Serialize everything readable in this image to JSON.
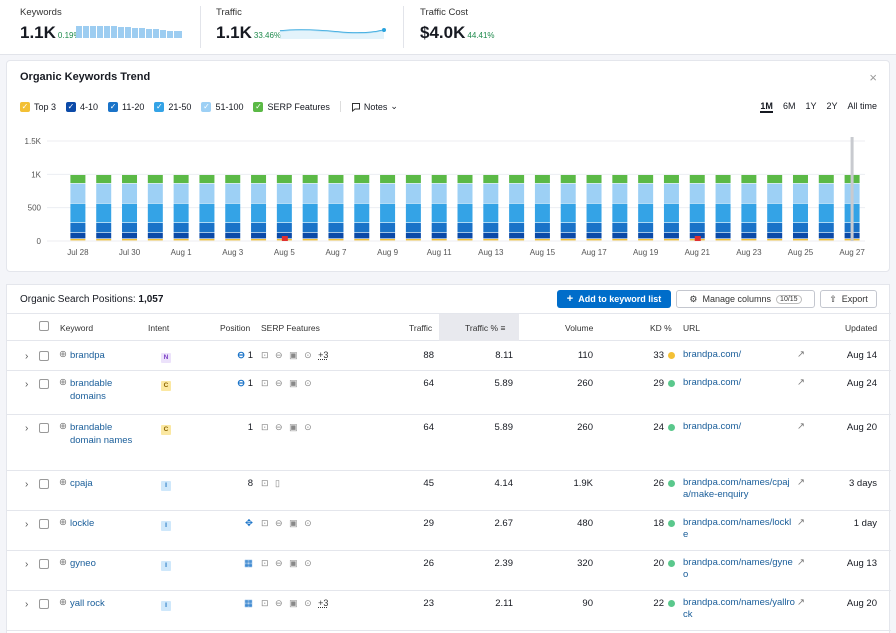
{
  "metrics": {
    "keywords": {
      "label": "Keywords",
      "value": "1.1K",
      "pct": "0.19%"
    },
    "traffic": {
      "label": "Traffic",
      "value": "1.1K",
      "pct": "33.46%"
    },
    "traffic_cost": {
      "label": "Traffic Cost",
      "value": "$4.0K",
      "pct": "44.41%"
    }
  },
  "trend": {
    "title": "Organic Keywords Trend",
    "legend": [
      {
        "label": "Top 3",
        "color": "#f3c035"
      },
      {
        "label": "4-10",
        "color": "#0b4aa8"
      },
      {
        "label": "11-20",
        "color": "#1a73c8"
      },
      {
        "label": "21-50",
        "color": "#34a3e6"
      },
      {
        "label": "51-100",
        "color": "#9dd0f5"
      },
      {
        "label": "SERP Features",
        "color": "#5bb946"
      }
    ],
    "notes_label": "Notes",
    "ranges": [
      "1M",
      "6M",
      "1Y",
      "2Y",
      "All time"
    ],
    "active_range": "1M"
  },
  "chart_data": {
    "type": "bar",
    "stacked": true,
    "categories": [
      "Jul 28",
      "Jul 29",
      "Jul 30",
      "Jul 31",
      "Aug 1",
      "Aug 2",
      "Aug 3",
      "Aug 4",
      "Aug 5",
      "Aug 6",
      "Aug 7",
      "Aug 8",
      "Aug 9",
      "Aug 10",
      "Aug 11",
      "Aug 12",
      "Aug 13",
      "Aug 14",
      "Aug 15",
      "Aug 16",
      "Aug 17",
      "Aug 18",
      "Aug 19",
      "Aug 20",
      "Aug 21",
      "Aug 22",
      "Aug 23",
      "Aug 24",
      "Aug 25",
      "Aug 26",
      "Aug 27"
    ],
    "x_tick_labels": [
      "Jul 28",
      "Jul 30",
      "Aug 1",
      "Aug 3",
      "Aug 5",
      "Aug 7",
      "Aug 9",
      "Aug 11",
      "Aug 13",
      "Aug 15",
      "Aug 17",
      "Aug 19",
      "Aug 21",
      "Aug 23",
      "Aug 25",
      "Aug 27"
    ],
    "y_tick_labels": [
      "1.5K",
      "1K",
      "500",
      "0"
    ],
    "ylim": [
      0,
      1500
    ],
    "series": [
      {
        "name": "Top 3",
        "color": "#f3c035",
        "values": [
          30,
          30,
          30,
          30,
          30,
          30,
          30,
          30,
          30,
          30,
          30,
          30,
          30,
          30,
          30,
          30,
          30,
          30,
          30,
          30,
          30,
          30,
          30,
          30,
          30,
          30,
          30,
          30,
          30,
          30,
          30
        ]
      },
      {
        "name": "4-10",
        "color": "#0b4aa8",
        "values": [
          90,
          90,
          90,
          90,
          90,
          90,
          90,
          90,
          90,
          90,
          90,
          90,
          90,
          90,
          90,
          90,
          90,
          90,
          90,
          90,
          90,
          90,
          90,
          90,
          90,
          90,
          90,
          90,
          90,
          90,
          90
        ]
      },
      {
        "name": "11-20",
        "color": "#1a73c8",
        "values": [
          150,
          150,
          150,
          150,
          150,
          150,
          150,
          150,
          150,
          150,
          150,
          150,
          150,
          150,
          150,
          150,
          150,
          150,
          150,
          150,
          150,
          150,
          150,
          150,
          150,
          150,
          150,
          150,
          150,
          150,
          150
        ]
      },
      {
        "name": "21-50",
        "color": "#34a3e6",
        "values": [
          290,
          290,
          290,
          290,
          290,
          290,
          290,
          290,
          290,
          290,
          290,
          290,
          290,
          290,
          290,
          290,
          290,
          290,
          290,
          290,
          290,
          290,
          290,
          290,
          290,
          290,
          290,
          290,
          290,
          290,
          290
        ]
      },
      {
        "name": "51-100",
        "color": "#9dd0f5",
        "values": [
          300,
          300,
          300,
          300,
          300,
          300,
          300,
          300,
          300,
          300,
          300,
          300,
          300,
          300,
          300,
          300,
          300,
          300,
          300,
          300,
          300,
          300,
          300,
          300,
          300,
          300,
          300,
          300,
          300,
          300,
          300
        ]
      },
      {
        "name": "SERP Features",
        "color": "#5bb946",
        "values": [
          130,
          130,
          130,
          130,
          130,
          130,
          130,
          130,
          130,
          130,
          130,
          130,
          130,
          130,
          130,
          130,
          130,
          130,
          130,
          130,
          130,
          130,
          130,
          130,
          130,
          130,
          130,
          130,
          130,
          130,
          130
        ]
      }
    ],
    "note_flags": [
      "Aug 5",
      "Aug 21"
    ]
  },
  "table": {
    "title_prefix": "Organic Search Positions:",
    "count": "1,057",
    "add_button": "Add to keyword list",
    "manage_button": "Manage columns",
    "manage_badge": "10/15",
    "export_button": "Export",
    "headers": {
      "keyword": "Keyword",
      "intent": "Intent",
      "position": "Position",
      "serp": "SERP Features",
      "traffic": "Traffic",
      "traffic_pct": "Traffic %",
      "volume": "Volume",
      "kd": "KD %",
      "url": "URL",
      "updated": "Updated"
    },
    "rows": [
      {
        "keyword": "brandpa",
        "intent": "N",
        "position": "1",
        "serp_extra": "+3",
        "traffic": "88",
        "traffic_pct": "8.11",
        "volume": "110",
        "kd": "33",
        "kd_color": "#f3c035",
        "url": "brandpa.com/",
        "updated": "Aug 14"
      },
      {
        "keyword": "brandable domains",
        "intent": "C",
        "position": "1",
        "serp_extra": "",
        "traffic": "64",
        "traffic_pct": "5.89",
        "volume": "260",
        "kd": "29",
        "kd_color": "#5ac88c",
        "url": "brandpa.com/",
        "updated": "Aug 24"
      },
      {
        "keyword": "brandable domain names",
        "intent": "C",
        "position": "1",
        "serp_extra": "",
        "traffic": "64",
        "traffic_pct": "5.89",
        "volume": "260",
        "kd": "24",
        "kd_color": "#5ac88c",
        "url": "brandpa.com/",
        "updated": "Aug 20"
      },
      {
        "keyword": "cpaja",
        "intent": "I",
        "position": "8",
        "serp_extra": "",
        "traffic": "45",
        "traffic_pct": "4.14",
        "volume": "1.9K",
        "kd": "26",
        "kd_color": "#5ac88c",
        "url": "brandpa.com/names/cpaja/make-enquiry",
        "updated": "3 days"
      },
      {
        "keyword": "lockle",
        "intent": "I",
        "position": "",
        "serp_extra": "",
        "traffic": "29",
        "traffic_pct": "2.67",
        "volume": "480",
        "kd": "18",
        "kd_color": "#5ac88c",
        "url": "brandpa.com/names/lockle",
        "updated": "1 day"
      },
      {
        "keyword": "gyneo",
        "intent": "I",
        "position": "",
        "serp_extra": "",
        "traffic": "26",
        "traffic_pct": "2.39",
        "volume": "320",
        "kd": "20",
        "kd_color": "#5ac88c",
        "url": "brandpa.com/names/gyneo",
        "updated": "Aug 13"
      },
      {
        "keyword": "yall rock",
        "intent": "I",
        "position": "",
        "serp_extra": "+3",
        "traffic": "23",
        "traffic_pct": "2.11",
        "volume": "90",
        "kd": "22",
        "kd_color": "#5ac88c",
        "url": "brandpa.com/names/yallrock",
        "updated": "Aug 20"
      }
    ]
  }
}
